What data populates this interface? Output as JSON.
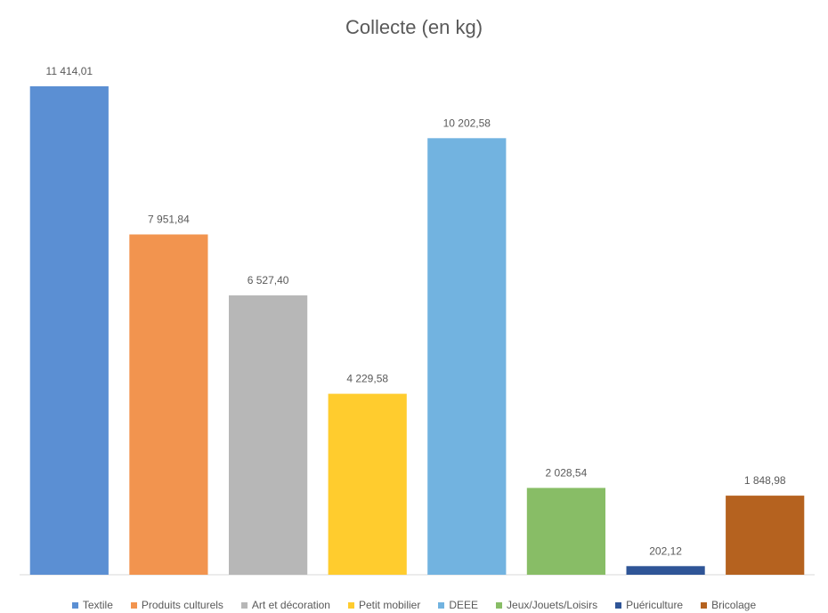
{
  "chart_data": {
    "type": "bar",
    "title": "Collecte (en kg)",
    "categories": [
      "Textile",
      "Produits culturels",
      "Art et décoration",
      "Petit mobilier",
      "DEEE",
      "Jeux/Jouets/Loisirs",
      "Puériculture",
      "Bricolage"
    ],
    "values": [
      11414.01,
      7951.84,
      6527.4,
      4229.58,
      10202.58,
      2028.54,
      202.12,
      1848.98
    ],
    "value_labels": [
      "11 414,01",
      "7 951,84",
      "6 527,40",
      "4 229,58",
      "10 202,58",
      "2 028,54",
      "202,12",
      "1 848,98"
    ],
    "colors": [
      "#5B8FD3",
      "#F2944F",
      "#B7B7B7",
      "#FFCC2E",
      "#72B3E0",
      "#88BD66",
      "#2F5597",
      "#B5621F"
    ],
    "ylim": [
      0,
      11414.01
    ],
    "legend_position": "bottom",
    "grid": false
  }
}
